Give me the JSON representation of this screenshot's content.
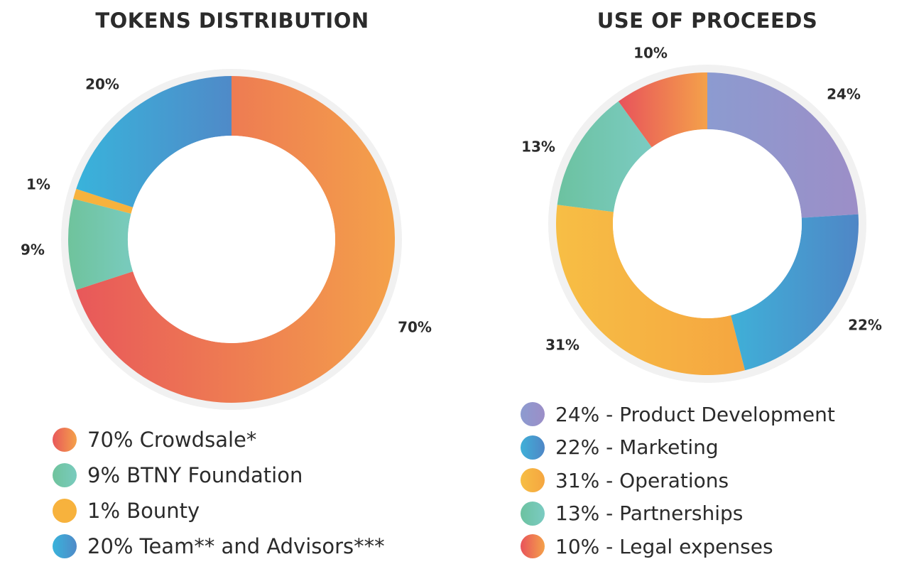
{
  "chart_data": [
    {
      "type": "pie",
      "title": "TOKENS DISTRIBUTION",
      "categories": [
        "Crowdsale*",
        "BTNY Foundation",
        "Bounty",
        "Team** and Advisors***"
      ],
      "values": [
        70,
        9,
        1,
        20
      ],
      "slice_labels": [
        "70%",
        "9%",
        "1%",
        "20%"
      ],
      "legend": [
        "70% Crowdsale*",
        "9% BTNY Foundation",
        "1% Bounty",
        "20% Team** and Advisors***"
      ],
      "colors": [
        [
          "#E8585A",
          "#F4A14A"
        ],
        [
          "#6FC39C",
          "#79CBBE"
        ],
        [
          "#F7B23D",
          "#F7B23D"
        ],
        [
          "#39B3DB",
          "#4F8AC8"
        ]
      ],
      "donut": true,
      "legend_position": "bottom"
    },
    {
      "type": "pie",
      "title": "USE OF PROCEEDS",
      "categories": [
        "Product Development",
        "Marketing",
        "Operations",
        "Partnerships",
        "Legal expenses"
      ],
      "values": [
        24,
        22,
        31,
        13,
        10
      ],
      "slice_labels": [
        "24%",
        "22%",
        "31%",
        "13%",
        "10%"
      ],
      "legend": [
        "24% - Product Development",
        "22% - Marketing",
        "31% - Operations",
        "13% - Partnerships",
        "10% - Legal expenses"
      ],
      "colors": [
        [
          "#8C9BD0",
          "#9C8EC7"
        ],
        [
          "#3FB0D8",
          "#4F86C6"
        ],
        [
          "#F7BE45",
          "#F5A640"
        ],
        [
          "#6CC2A0",
          "#7BCBC2"
        ],
        [
          "#E8535B",
          "#F4A14A"
        ]
      ],
      "donut": true,
      "legend_position": "bottom"
    }
  ]
}
